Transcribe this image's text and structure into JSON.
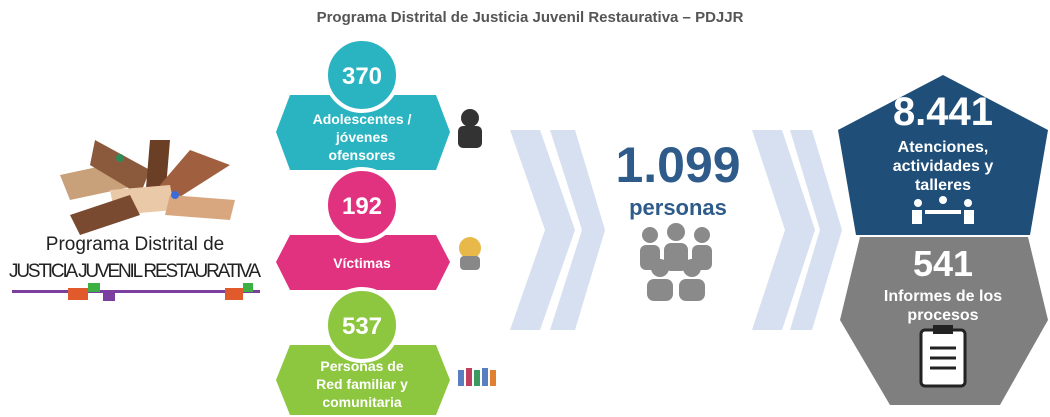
{
  "header": {
    "title": "Programa Distrital de Justicia Juvenil Restaurativa – PDJJR"
  },
  "logo": {
    "line1": "Programa Distrital de",
    "line2": "JUSTICIA JUVENIL RESTAURATIVA"
  },
  "groups": [
    {
      "number": "370",
      "lines": [
        "Adolescentes  /",
        "jóvenes",
        "ofensores"
      ]
    },
    {
      "number": "192",
      "lines": [
        "Víctimas"
      ]
    },
    {
      "number": "537",
      "lines": [
        "Personas de",
        "Red familiar y",
        "comunitaria"
      ]
    }
  ],
  "total": {
    "number": "1.099",
    "label": "personas"
  },
  "results": [
    {
      "number": "8.441",
      "lines": [
        "Atenciones,",
        "actividades y",
        "talleres"
      ]
    },
    {
      "number": "541",
      "lines": [
        "Informes de los",
        "procesos"
      ]
    }
  ]
}
